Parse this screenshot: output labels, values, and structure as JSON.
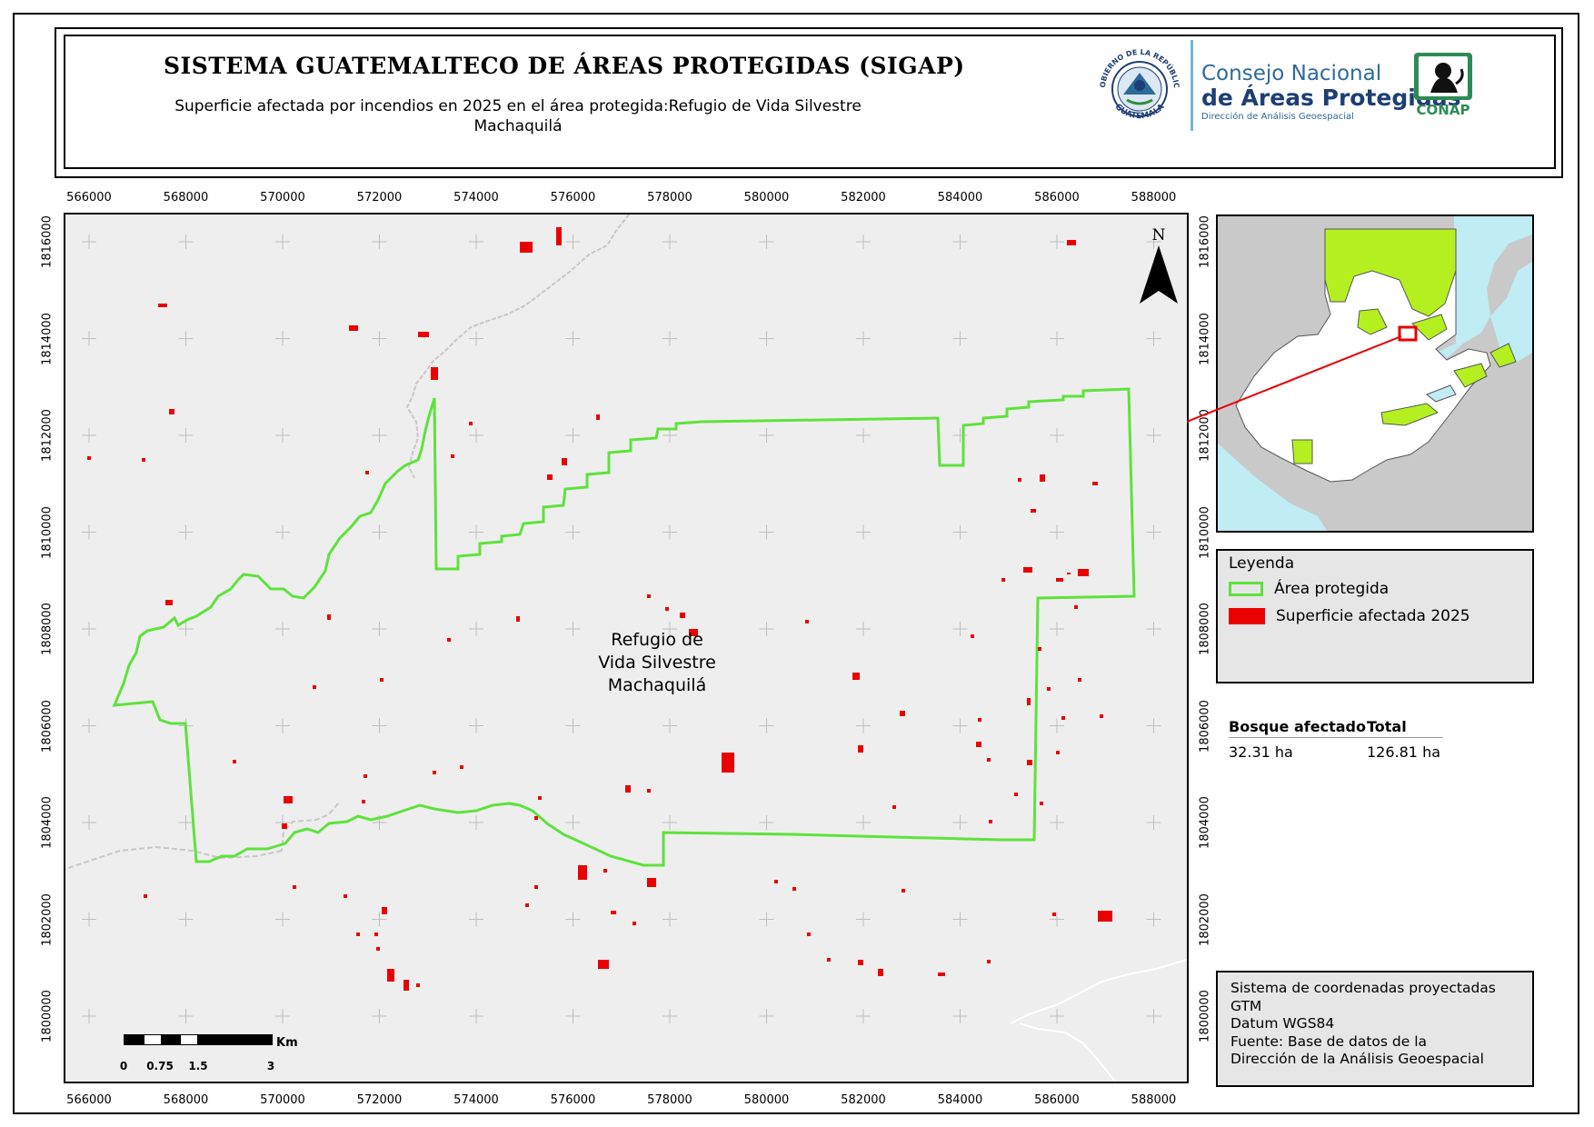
{
  "header": {
    "title": "SISTEMA GUATEMALTECO DE ÁREAS PROTEGIDAS  (SIGAP)",
    "subtitle_line1": "Superficie afectada por incendios en 2025 en el área protegida:Refugio de Vida Silvestre",
    "subtitle_line2": "Machaquilá"
  },
  "logos": {
    "seal_text_top": "GOBIERNO DE LA REPÚBLICA",
    "seal_text_bottom": "GUATEMALA",
    "council_line1": "Consejo Nacional",
    "council_line2": "de Áreas Protegidas",
    "council_line3": "Dirección de Análisis Geoespacial",
    "conap_label": "CONAP"
  },
  "map": {
    "area_label_line1": "Refugio de",
    "area_label_line2": "Vida Silvestre",
    "area_label_line3": "Machaquilá",
    "north_label": "N",
    "x_ticks": [
      "566000",
      "568000",
      "570000",
      "572000",
      "574000",
      "576000",
      "578000",
      "580000",
      "582000",
      "584000",
      "586000",
      "588000"
    ],
    "y_ticks": [
      "1816000",
      "1814000",
      "1812000",
      "1810000",
      "1808000",
      "1806000",
      "1804000",
      "1802000",
      "1800000"
    ],
    "colors": {
      "protected_area": "#5ee23c",
      "burned": "#e90000",
      "background": "#eeeeee",
      "road": "#c8c8c8"
    }
  },
  "scale_bar": {
    "labels": [
      "0",
      "0.75",
      "1.5",
      "3"
    ],
    "unit": "Km"
  },
  "legend": {
    "title": "Leyenda",
    "items": [
      {
        "label": "Área protegida",
        "symbol": "area-outline-icon"
      },
      {
        "label": "Superficie afectada 2025",
        "symbol": "burned-fill-icon"
      }
    ]
  },
  "stats": {
    "headers": [
      "Bosque afectado",
      "Total"
    ],
    "values": [
      "32.31 ha",
      "126.81 ha"
    ]
  },
  "info": {
    "line1": "Sistema de coordenadas proyectadas",
    "line2": "GTM",
    "line3": "Datum WGS84",
    "line4": "Fuente: Base de datos de la",
    "line5": "Dirección de la Análisis Geoespacial"
  }
}
